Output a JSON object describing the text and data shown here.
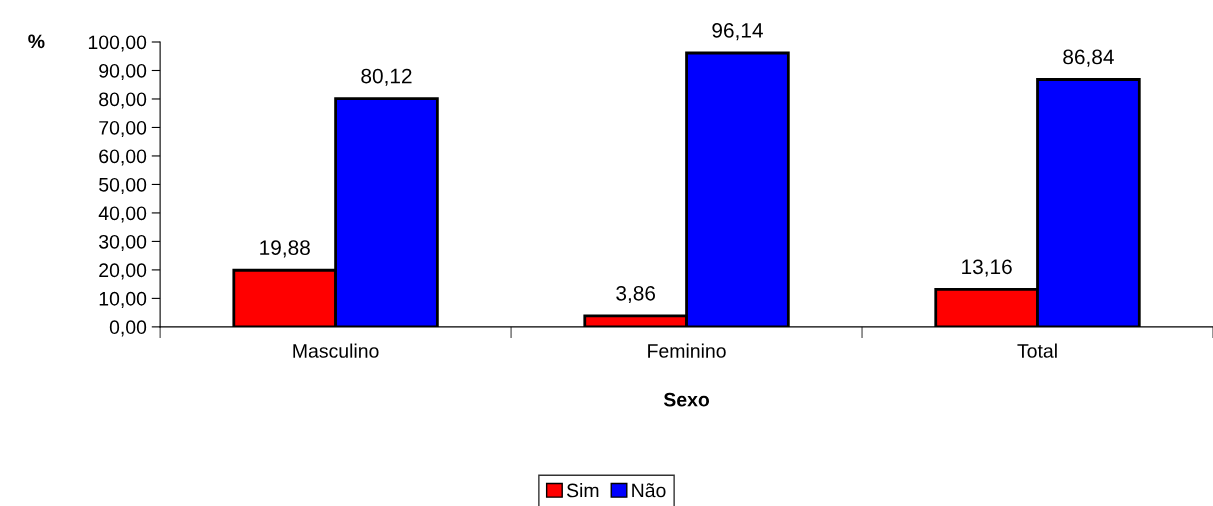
{
  "chart_data": {
    "type": "bar",
    "xlabel": "Sexo",
    "ylabel": "%",
    "categories": [
      "Masculino",
      "Feminino",
      "Total"
    ],
    "series": [
      {
        "name": "Sim",
        "color": "#ff0000",
        "values": [
          19.88,
          3.86,
          13.16
        ],
        "value_labels": [
          "19,88",
          "3,86",
          "13,16"
        ]
      },
      {
        "name": "Não",
        "color": "#0000ff",
        "values": [
          80.12,
          96.14,
          86.84
        ],
        "value_labels": [
          "80,12",
          "96,14",
          "86,84"
        ]
      }
    ],
    "ylim": [
      0,
      100
    ],
    "yticks": [
      {
        "value": 0,
        "label": "0,00"
      },
      {
        "value": 10,
        "label": "10,00"
      },
      {
        "value": 20,
        "label": "20,00"
      },
      {
        "value": 30,
        "label": "30,00"
      },
      {
        "value": 40,
        "label": "40,00"
      },
      {
        "value": 50,
        "label": "50,00"
      },
      {
        "value": 60,
        "label": "60,00"
      },
      {
        "value": 70,
        "label": "70,00"
      },
      {
        "value": 80,
        "label": "80,00"
      },
      {
        "value": 90,
        "label": "90,00"
      },
      {
        "value": 100,
        "label": "100,00"
      }
    ],
    "grid": false,
    "legend": "bottom"
  }
}
